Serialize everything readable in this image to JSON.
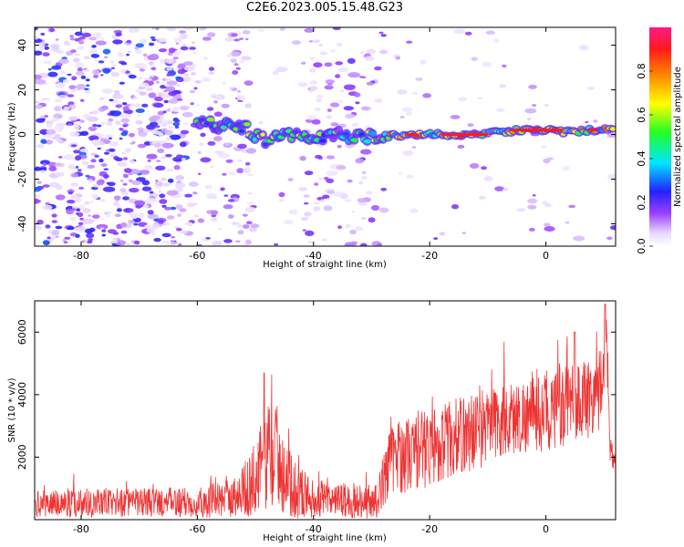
{
  "title": "C2E6.2023.005.15.48.G23",
  "chart_data": [
    {
      "type": "heatmap",
      "xlabel": "Height of straight line (km)",
      "ylabel": "Frequency (Hz)",
      "xlim": [
        -88,
        12
      ],
      "ylim": [
        -50,
        48
      ],
      "xticks": [
        -80,
        -60,
        -40,
        -20,
        0
      ],
      "yticks": [
        -40,
        -20,
        0,
        20,
        40
      ],
      "colorbar": {
        "label": "Normalized spectral amplitude",
        "range": [
          0.0,
          1.0
        ],
        "ticks": [
          0.0,
          0.2,
          0.4,
          0.6,
          0.8
        ],
        "tick_labels": [
          "0.0",
          "0.2",
          "0.4",
          "0.6",
          "0.8"
        ],
        "colormap": "rainbow (white-purple-blue-cyan-green-yellow-red-magenta)"
      },
      "ridge": [
        {
          "x": -60,
          "y": 6,
          "amp": 0.35
        },
        {
          "x": -56,
          "y": 4,
          "amp": 0.4
        },
        {
          "x": -52,
          "y": 3,
          "amp": 0.45
        },
        {
          "x": -48,
          "y": -3,
          "amp": 0.45
        },
        {
          "x": -44,
          "y": 0,
          "amp": 0.4
        },
        {
          "x": -40,
          "y": -1,
          "amp": 0.35
        },
        {
          "x": -36,
          "y": 0,
          "amp": 0.4
        },
        {
          "x": -32,
          "y": -1,
          "amp": 0.35
        },
        {
          "x": -28,
          "y": -1,
          "amp": 0.55
        },
        {
          "x": -24,
          "y": 0,
          "amp": 0.6
        },
        {
          "x": -20,
          "y": 0,
          "amp": 0.6
        },
        {
          "x": -16,
          "y": 0,
          "amp": 0.65
        },
        {
          "x": -12,
          "y": 0,
          "amp": 0.7
        },
        {
          "x": -8,
          "y": 1,
          "amp": 0.55
        },
        {
          "x": -4,
          "y": 2,
          "amp": 0.6
        },
        {
          "x": 0,
          "y": 2,
          "amp": 0.75
        },
        {
          "x": 4,
          "y": 1,
          "amp": 0.65
        },
        {
          "x": 8,
          "y": 2,
          "amp": 0.6
        },
        {
          "x": 12,
          "y": 3,
          "amp": 0.55
        }
      ]
    },
    {
      "type": "line",
      "xlabel": "Height of straight line (km)",
      "ylabel": "SNR (10 * v/v)",
      "xlim": [
        -88,
        12
      ],
      "ylim": [
        0,
        7000
      ],
      "xticks": [
        -80,
        -60,
        -40,
        -20,
        0
      ],
      "yticks": [
        2000,
        4000,
        6000
      ],
      "color": "#ee3333",
      "envelope": [
        {
          "x": -88,
          "base": 500,
          "amp": 600
        },
        {
          "x": -80,
          "base": 550,
          "amp": 700
        },
        {
          "x": -70,
          "base": 550,
          "amp": 650
        },
        {
          "x": -60,
          "base": 550,
          "amp": 700
        },
        {
          "x": -54,
          "base": 700,
          "amp": 900
        },
        {
          "x": -50,
          "base": 1200,
          "amp": 1600
        },
        {
          "x": -48,
          "base": 2200,
          "amp": 2600
        },
        {
          "x": -46,
          "base": 2000,
          "amp": 2400
        },
        {
          "x": -44,
          "base": 1100,
          "amp": 1500
        },
        {
          "x": -40,
          "base": 650,
          "amp": 850
        },
        {
          "x": -34,
          "base": 600,
          "amp": 800
        },
        {
          "x": -29,
          "base": 600,
          "amp": 800
        },
        {
          "x": -27,
          "base": 1900,
          "amp": 1600
        },
        {
          "x": -22,
          "base": 2200,
          "amp": 1800
        },
        {
          "x": -16,
          "base": 2600,
          "amp": 1800
        },
        {
          "x": -10,
          "base": 3000,
          "amp": 1800
        },
        {
          "x": -4,
          "base": 3300,
          "amp": 1700
        },
        {
          "x": 2,
          "base": 3500,
          "amp": 1800
        },
        {
          "x": 6,
          "base": 3800,
          "amp": 1900
        },
        {
          "x": 9,
          "base": 4100,
          "amp": 2000
        },
        {
          "x": 10.5,
          "base": 5600,
          "amp": 1300
        },
        {
          "x": 11,
          "base": 2500,
          "amp": 900
        },
        {
          "x": 12,
          "base": 1800,
          "amp": 600
        }
      ],
      "peaks": [
        {
          "x": -48.5,
          "y": 4700
        },
        {
          "x": 10.2,
          "y": 6900
        },
        {
          "x": 5,
          "y": 6000
        }
      ]
    }
  ]
}
